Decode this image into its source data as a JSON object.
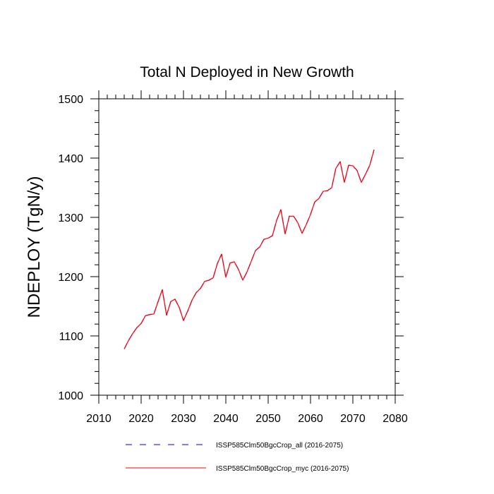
{
  "chart_data": {
    "type": "line",
    "title": "Total N Deployed in New Growth",
    "xlabel": "",
    "ylabel": "NDEPLOY  (TgN/y)",
    "xlim": [
      2010,
      2080
    ],
    "ylim": [
      1000,
      1500
    ],
    "xticks": [
      2010,
      2020,
      2030,
      2040,
      2050,
      2060,
      2070,
      2080
    ],
    "yticks": [
      1000,
      1100,
      1200,
      1300,
      1400,
      1500
    ],
    "grid": false,
    "legend_position": "bottom",
    "x": [
      2016,
      2017,
      2018,
      2019,
      2020,
      2021,
      2022,
      2023,
      2024,
      2025,
      2026,
      2027,
      2028,
      2029,
      2030,
      2031,
      2032,
      2033,
      2034,
      2035,
      2036,
      2037,
      2038,
      2039,
      2040,
      2041,
      2042,
      2043,
      2044,
      2045,
      2046,
      2047,
      2048,
      2049,
      2050,
      2051,
      2052,
      2053,
      2054,
      2055,
      2056,
      2057,
      2058,
      2059,
      2060,
      2061,
      2062,
      2063,
      2064,
      2065,
      2066,
      2067,
      2068,
      2069,
      2070,
      2071,
      2072,
      2073,
      2074,
      2075
    ],
    "series": [
      {
        "name": "ISSP585Clm50BgcCrop_all (2016-2075)",
        "color": "#0000ff",
        "dash": "dashed",
        "values": [
          1078,
          1092,
          1104,
          1114,
          1121,
          1134,
          1136,
          1137,
          1158,
          1178,
          1135,
          1158,
          1162,
          1148,
          1126,
          1142,
          1160,
          1173,
          1180,
          1192,
          1194,
          1198,
          1222,
          1238,
          1199,
          1223,
          1225,
          1212,
          1194,
          1208,
          1226,
          1244,
          1250,
          1263,
          1265,
          1269,
          1295,
          1313,
          1272,
          1302,
          1302,
          1291,
          1273,
          1288,
          1305,
          1326,
          1332,
          1344,
          1345,
          1350,
          1383,
          1394,
          1359,
          1388,
          1387,
          1379,
          1359,
          1373,
          1388,
          1414
        ]
      },
      {
        "name": "ISSP585Clm50BgcCrop_myc (2016-2075)",
        "color": "#ff0000",
        "dash": "solid",
        "values": [
          1078,
          1092,
          1104,
          1114,
          1121,
          1134,
          1136,
          1137,
          1158,
          1178,
          1135,
          1158,
          1162,
          1148,
          1126,
          1142,
          1160,
          1173,
          1180,
          1192,
          1194,
          1198,
          1222,
          1238,
          1199,
          1223,
          1225,
          1212,
          1194,
          1208,
          1226,
          1244,
          1250,
          1263,
          1265,
          1269,
          1295,
          1313,
          1272,
          1302,
          1302,
          1291,
          1273,
          1288,
          1305,
          1326,
          1332,
          1344,
          1345,
          1350,
          1383,
          1394,
          1359,
          1388,
          1387,
          1379,
          1359,
          1373,
          1388,
          1414
        ]
      }
    ]
  }
}
